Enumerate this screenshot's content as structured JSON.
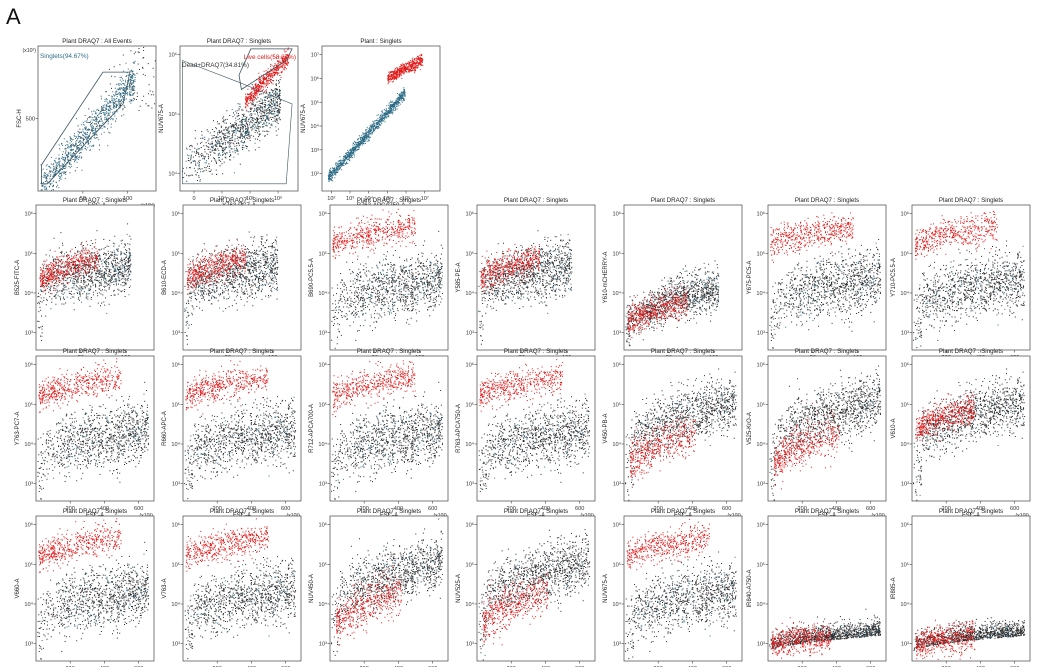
{
  "panel_letter": "A",
  "colors": {
    "gray_events": "#2b2b2b",
    "blue_events": "#2f6d86",
    "red_events": "#e21b1b",
    "gate_blue_text": "#2f6d86",
    "gate_red_text": "#e21b1b",
    "gate_outline": "#3d5560"
  },
  "chart_data": [
    {
      "type": "scatter",
      "title": "Plant DRAQ7 : All Events",
      "xlabel": "FSC-A",
      "ylabel": "FSC-H",
      "xscale": "linear",
      "yscale": "linear",
      "xticks": [
        "50",
        "100"
      ],
      "yticks": [
        "500"
      ],
      "xmult": "(x10⁴)",
      "ymult": "(x10²)",
      "pattern": "diagonal",
      "red": "none",
      "gate": {
        "label": "Singlets(94.67%)",
        "shape": "diagonal-polygon"
      }
    },
    {
      "type": "scatter",
      "title": "Plant DRAQ7 : Singlets",
      "xlabel": "Y763-PC7-A",
      "ylabel": "NUV675-A",
      "xscale": "log",
      "yscale": "log",
      "xticks": [
        "0",
        "10⁴",
        "10⁵",
        "10⁶"
      ],
      "yticks": [
        "10⁴",
        "10⁵",
        "10⁶"
      ],
      "xmult": "",
      "ymult": "",
      "pattern": "logdiag",
      "red": "upper-right",
      "gate": {
        "label": "Live cells(58.27%)",
        "label2": "Dead+DRAQ7(34.81%)",
        "shape": "two-boxes"
      }
    },
    {
      "type": "scatter",
      "title": "Plant : Singlets",
      "xlabel": "R763-APCA750-A",
      "ylabel": "NUV675-A",
      "xscale": "log",
      "yscale": "log",
      "xticks": [
        "10²",
        "10³",
        "10⁴",
        "10⁵",
        "10⁶",
        "10⁷"
      ],
      "yticks": [
        "10²",
        "10³",
        "10⁴",
        "10⁵",
        "10⁶",
        "10⁷"
      ],
      "xmult": "",
      "ymult": "",
      "pattern": "tightdiag",
      "red": "upper-end"
    },
    {
      "type": "scatter",
      "title": "Plant DRAQ7 : Singlets",
      "xlabel": "FSC-A",
      "ylabel": "B525-FITC-A",
      "xscale": "linear",
      "yscale": "log",
      "xticks": [
        "50",
        "100"
      ],
      "yticks": [
        "10³",
        "10⁴",
        "10⁵",
        "10⁶"
      ],
      "xmult": "(x10⁴)",
      "ymult": "",
      "pattern": "band",
      "red": "overlap"
    },
    {
      "type": "scatter",
      "title": "Plant DRAQ7 : Singlets",
      "xlabel": "FSC-A",
      "ylabel": "B610-ECD-A",
      "xscale": "linear",
      "yscale": "log",
      "xticks": [
        "50",
        "100"
      ],
      "yticks": [
        "10³",
        "10⁴",
        "10⁵",
        "10⁶"
      ],
      "xmult": "(x10⁴)",
      "ymult": "",
      "pattern": "band",
      "red": "overlap"
    },
    {
      "type": "scatter",
      "title": "Plant DRAQ7 : Singlets",
      "xlabel": "FSC-A",
      "ylabel": "B690-PC5.5-A",
      "xscale": "linear",
      "yscale": "log",
      "xticks": [
        "50",
        "100"
      ],
      "yticks": [
        "10³",
        "10⁴",
        "10⁵",
        "10⁶"
      ],
      "xmult": "(x10⁴)",
      "ymult": "",
      "pattern": "two",
      "red": "above"
    },
    {
      "type": "scatter",
      "title": "Plant DRAQ7 : Singlets",
      "xlabel": "FSC-A",
      "ylabel": "Y585-PE-A",
      "xscale": "linear",
      "yscale": "log",
      "xticks": [
        "50",
        "100"
      ],
      "yticks": [
        "10³",
        "10⁴",
        "10⁵",
        "10⁶"
      ],
      "xmult": "(x10⁴)",
      "ymult": "",
      "pattern": "band",
      "red": "overlap"
    },
    {
      "type": "scatter",
      "title": "Plant DRAQ7 : Singlets",
      "xlabel": "FSC-A",
      "ylabel": "Y610-mCHERRY-A",
      "xscale": "linear",
      "yscale": "log",
      "xticks": [
        "50",
        "100"
      ],
      "yticks": [
        "10³",
        "10⁴",
        "10⁵",
        "10⁶"
      ],
      "xmult": "(x10⁴)",
      "ymult": "",
      "pattern": "lowband",
      "red": "overlap"
    },
    {
      "type": "scatter",
      "title": "Plant DRAQ7 : Singlets",
      "xlabel": "FSC-A",
      "ylabel": "Y675-PC5-A",
      "xscale": "linear",
      "yscale": "log",
      "xticks": [
        "50",
        "100"
      ],
      "yticks": [
        "10³",
        "10⁴",
        "10⁵",
        "10⁶"
      ],
      "xmult": "(x10⁴)",
      "ymult": "",
      "pattern": "two",
      "red": "above"
    },
    {
      "type": "scatter",
      "title": "Plant DRAQ7 : Singlets",
      "xlabel": "FSC-A",
      "ylabel": "Y710-PC5.5-A",
      "xscale": "linear",
      "yscale": "log",
      "xticks": [
        "200",
        "400",
        "600"
      ],
      "yticks": [
        "10³",
        "10⁴",
        "10⁵",
        "10⁶"
      ],
      "xmult": "(x10³)",
      "ymult": "",
      "pattern": "two",
      "red": "above"
    },
    {
      "type": "scatter",
      "title": "Plant DRAQ7 : Singlets",
      "xlabel": "FSC-A",
      "ylabel": "Y763-PC7-A",
      "xscale": "linear",
      "yscale": "log",
      "xticks": [
        "200",
        "400",
        "600"
      ],
      "yticks": [
        "10³",
        "10⁴",
        "10⁵",
        "10⁶"
      ],
      "xmult": "(x10³)",
      "ymult": "",
      "pattern": "two",
      "red": "above"
    },
    {
      "type": "scatter",
      "title": "Plant DRAQ7 : Singlets",
      "xlabel": "FSC-A",
      "ylabel": "R660-APC-A",
      "xscale": "linear",
      "yscale": "log",
      "xticks": [
        "200",
        "400",
        "600"
      ],
      "yticks": [
        "10³",
        "10⁴",
        "10⁵",
        "10⁶"
      ],
      "xmult": "(x10³)",
      "ymult": "",
      "pattern": "two",
      "red": "above"
    },
    {
      "type": "scatter",
      "title": "Plant DRAQ7 : Singlets",
      "xlabel": "FSC-A",
      "ylabel": "R712-APCA700-A",
      "xscale": "linear",
      "yscale": "log",
      "xticks": [
        "200",
        "400",
        "600"
      ],
      "yticks": [
        "10³",
        "10⁴",
        "10⁵",
        "10⁶"
      ],
      "xmult": "(x10³)",
      "ymult": "",
      "pattern": "two",
      "red": "above"
    },
    {
      "type": "scatter",
      "title": "Plant DRAQ7 : Singlets",
      "xlabel": "FSC-A",
      "ylabel": "R763-APCA750-A",
      "xscale": "linear",
      "yscale": "log",
      "xticks": [
        "200",
        "400",
        "600"
      ],
      "yticks": [
        "10³",
        "10⁴",
        "10⁵",
        "10⁶"
      ],
      "xmult": "(x10³)",
      "ymult": "",
      "pattern": "two",
      "red": "above"
    },
    {
      "type": "scatter",
      "title": "Plant DRAQ7 : Singlets",
      "xlabel": "FSC-A",
      "ylabel": "V450-PB-A",
      "xscale": "linear",
      "yscale": "log",
      "xticks": [
        "200",
        "400",
        "600"
      ],
      "yticks": [
        "10³",
        "10⁴",
        "10⁵",
        "10⁶"
      ],
      "xmult": "(x10³)",
      "ymult": "",
      "pattern": "bigband",
      "red": "below"
    },
    {
      "type": "scatter",
      "title": "Plant DRAQ7 : Singlets",
      "xlabel": "FSC-A",
      "ylabel": "V525-KrO-A",
      "xscale": "linear",
      "yscale": "log",
      "xticks": [
        "200",
        "400",
        "600"
      ],
      "yticks": [
        "10³",
        "10⁴",
        "10⁵",
        "10⁶"
      ],
      "xmult": "(x10³)",
      "ymult": "",
      "pattern": "bigband",
      "red": "below"
    },
    {
      "type": "scatter",
      "title": "Plant DRAQ7 : Singlets",
      "xlabel": "FSC-A",
      "ylabel": "V610-A",
      "xscale": "linear",
      "yscale": "log",
      "xticks": [
        "200",
        "400",
        "600"
      ],
      "yticks": [
        "10³",
        "10⁴",
        "10⁵",
        "10⁶"
      ],
      "xmult": "(x10³)",
      "ymult": "",
      "pattern": "bigband",
      "red": "overlap"
    },
    {
      "type": "scatter",
      "title": "Plant DRAQ7 : Singlets",
      "xlabel": "FSC-A",
      "ylabel": "V660-A",
      "xscale": "linear",
      "yscale": "log",
      "xticks": [
        "200",
        "400",
        "600"
      ],
      "yticks": [
        "10³",
        "10⁴",
        "10⁵",
        "10⁶"
      ],
      "xmult": "(x10³)",
      "ymult": "",
      "pattern": "two",
      "red": "above"
    },
    {
      "type": "scatter",
      "title": "Plant DRAQ7 : Singlets",
      "xlabel": "FSC-A",
      "ylabel": "V763-A",
      "xscale": "linear",
      "yscale": "log",
      "xticks": [
        "200",
        "400",
        "600"
      ],
      "yticks": [
        "10³",
        "10⁴",
        "10⁵",
        "10⁶"
      ],
      "xmult": "(x10³)",
      "ymult": "",
      "pattern": "two",
      "red": "above"
    },
    {
      "type": "scatter",
      "title": "Plant DRAQ7 : Singlets",
      "xlabel": "FSC-A",
      "ylabel": "NUV450-A",
      "xscale": "linear",
      "yscale": "log",
      "xticks": [
        "200",
        "400",
        "600"
      ],
      "yticks": [
        "10³",
        "10⁴",
        "10⁵",
        "10⁶"
      ],
      "xmult": "(x10³)",
      "ymult": "",
      "pattern": "bigband",
      "red": "below"
    },
    {
      "type": "scatter",
      "title": "Plant DRAQ7 : Singlets",
      "xlabel": "FSC-A",
      "ylabel": "NUV525-A",
      "xscale": "linear",
      "yscale": "log",
      "xticks": [
        "200",
        "400",
        "600"
      ],
      "yticks": [
        "10³",
        "10⁴",
        "10⁵",
        "10⁶"
      ],
      "xmult": "(x10³)",
      "ymult": "",
      "pattern": "bigband",
      "red": "below"
    },
    {
      "type": "scatter",
      "title": "Plant DRAQ7 : Singlets",
      "xlabel": "FSC-A",
      "ylabel": "NUV675-A",
      "xscale": "linear",
      "yscale": "log",
      "xticks": [
        "200",
        "400",
        "600"
      ],
      "yticks": [
        "10³",
        "10⁴",
        "10⁵",
        "10⁶"
      ],
      "xmult": "(x10³)",
      "ymult": "",
      "pattern": "two",
      "red": "above"
    },
    {
      "type": "scatter",
      "title": "Plant DRAQ7 : Singlets",
      "xlabel": "FSC-A",
      "ylabel": "IR840-A750-A",
      "xscale": "linear",
      "yscale": "log",
      "xticks": [
        "200",
        "400",
        "600"
      ],
      "yticks": [
        "10³",
        "10⁴",
        "10⁵",
        "10⁶"
      ],
      "xmult": "(x10³)",
      "ymult": "",
      "pattern": "flat",
      "red": "overlap"
    },
    {
      "type": "scatter",
      "title": "Plant DRAQ7 : Singlets",
      "xlabel": "FSC-A",
      "ylabel": "IR885-A",
      "xscale": "linear",
      "yscale": "log",
      "xticks": [
        "200",
        "400",
        "600"
      ],
      "yticks": [
        "10³",
        "10⁴",
        "10⁵",
        "10⁶"
      ],
      "xmult": "(x10³)",
      "ymult": "",
      "pattern": "flat",
      "red": "overlap"
    }
  ]
}
